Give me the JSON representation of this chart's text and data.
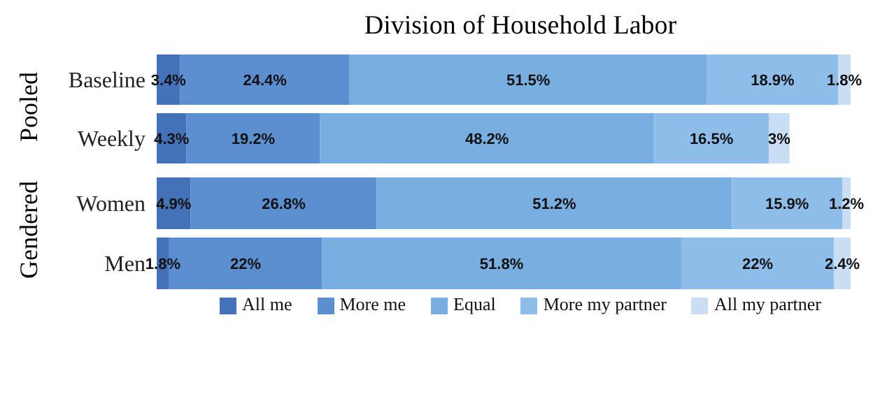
{
  "chart_data": [
    {
      "type": "bar",
      "orientation": "horizontal",
      "stacked": true,
      "title": "Division of Household Labor",
      "ylabel": "Pooled",
      "categories": [
        "Baseline",
        "Weekly"
      ],
      "tick_labels": "y",
      "legend": false,
      "grid": false,
      "series": [
        {
          "color": "#4472b8",
          "values": [
            3.4,
            4.3
          ],
          "value_labels": [
            "3.4%",
            "4.3%"
          ]
        },
        {
          "color": "#5b8fcf",
          "values": [
            24.4,
            19.2
          ],
          "value_labels": [
            "24.4%",
            "19.2%"
          ]
        },
        {
          "color": "#78aee0",
          "values": [
            51.5,
            48.2
          ],
          "value_labels": [
            "51.5%",
            "48.2%"
          ]
        },
        {
          "color": "#8dbde8",
          "values": [
            18.9,
            16.5
          ],
          "value_labels": [
            "18.9%",
            "16.5%"
          ]
        },
        {
          "color": "#c9def3",
          "values": [
            1.8,
            3
          ],
          "value_labels": [
            "1.8%",
            "3%"
          ]
        }
      ]
    },
    {
      "type": "bar",
      "orientation": "horizontal",
      "stacked": true,
      "ylabel": "Gendered",
      "categories": [
        "Women",
        "Men"
      ],
      "tick_labels": "y",
      "legend": "bottom",
      "grid": false,
      "series": [
        {
          "name": "All me",
          "color": "#4472b8",
          "values": [
            4.9,
            1.8
          ],
          "value_labels": [
            "4.9%",
            "1.8%"
          ]
        },
        {
          "name": "More me",
          "color": "#5b8fcf",
          "values": [
            26.8,
            22
          ],
          "value_labels": [
            "26.8%",
            "22%"
          ]
        },
        {
          "name": "Equal",
          "color": "#78aee0",
          "values": [
            51.2,
            51.8
          ],
          "value_labels": [
            "51.2%",
            "51.8%"
          ]
        },
        {
          "name": "More my partner",
          "color": "#8dbde8",
          "values": [
            15.9,
            22
          ],
          "value_labels": [
            "15.9%",
            "22%"
          ]
        },
        {
          "name": "All my partner",
          "color": "#c9def3",
          "values": [
            1.2,
            2.4
          ],
          "value_labels": [
            "1.2%",
            "2.4%"
          ]
        }
      ]
    }
  ]
}
